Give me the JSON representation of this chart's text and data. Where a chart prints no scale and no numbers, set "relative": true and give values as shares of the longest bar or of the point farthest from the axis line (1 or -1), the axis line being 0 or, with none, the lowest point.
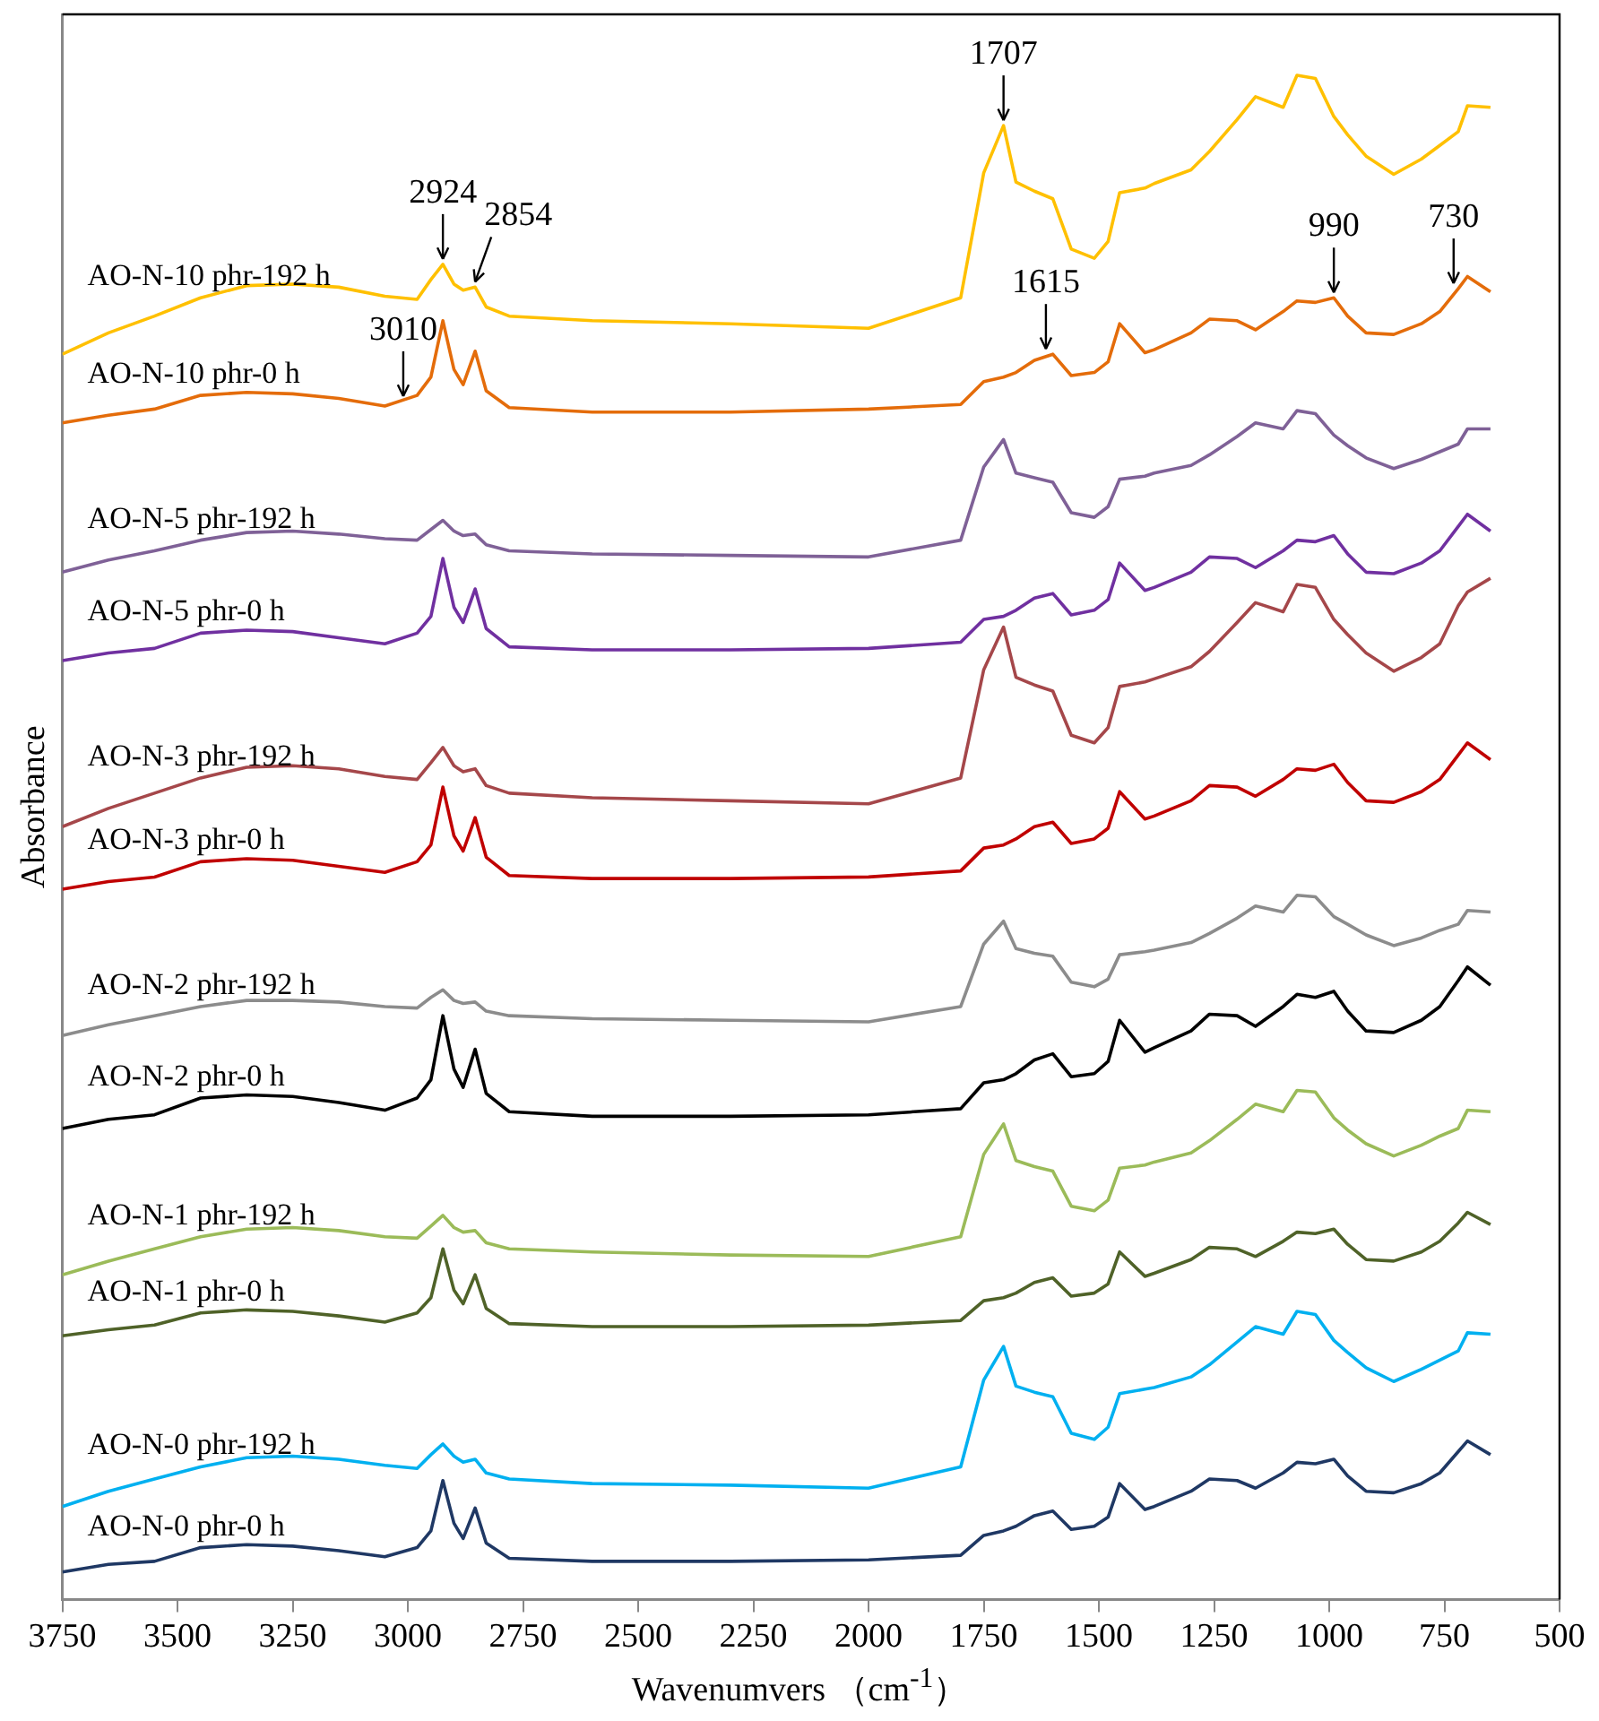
{
  "chart_data": {
    "type": "line",
    "relative": true,
    "xlabel": "Wavenumvers （cm$^{-1}$）",
    "ylabel": "Absorbance",
    "xlim": [
      3750,
      500
    ],
    "xticks": [
      3750,
      3500,
      3250,
      3000,
      2750,
      2500,
      2250,
      2000,
      1750,
      1500,
      1250,
      1000,
      750,
      500
    ],
    "grid": false,
    "legend": false,
    "x": [
      3750,
      3650,
      3550,
      3450,
      3350,
      3250,
      3150,
      3050,
      2980,
      2950,
      2924,
      2900,
      2880,
      2854,
      2830,
      2780,
      2600,
      2300,
      2000,
      1800,
      1750,
      1707,
      1680,
      1640,
      1600,
      1560,
      1510,
      1480,
      1455,
      1400,
      1380,
      1300,
      1260,
      1200,
      1160,
      1100,
      1070,
      1030,
      990,
      960,
      920,
      860,
      800,
      760,
      720,
      700,
      650
    ],
    "annotations": [
      {
        "text": "2924",
        "x": 2924,
        "y": 0.876
      },
      {
        "text": "2854",
        "x": 2854,
        "y": 0.861
      },
      {
        "text": "3010",
        "x": 3010,
        "y": 0.786
      },
      {
        "text": "1707",
        "x": 1707,
        "y": 0.967
      },
      {
        "text": "1615",
        "x": 1615,
        "y": 0.817
      },
      {
        "text": "990",
        "x": 990,
        "y": 0.854
      },
      {
        "text": "730",
        "x": 730,
        "y": 0.86
      }
    ],
    "series": [
      {
        "name": "AO-N-10 phr-192 h",
        "color": "#ffc000",
        "values": [
          0.817,
          0.831,
          0.842,
          0.854,
          0.862,
          0.863,
          0.861,
          0.855,
          0.853,
          0.866,
          0.876,
          0.863,
          0.859,
          0.861,
          0.848,
          0.842,
          0.839,
          0.837,
          0.834,
          0.854,
          0.936,
          0.967,
          0.93,
          0.924,
          0.919,
          0.886,
          0.88,
          0.891,
          0.923,
          0.926,
          0.929,
          0.938,
          0.95,
          0.971,
          0.986,
          0.979,
          1.0,
          0.998,
          0.973,
          0.961,
          0.947,
          0.935,
          0.945,
          0.954,
          0.963,
          0.98,
          0.979
        ]
      },
      {
        "name": "AO-N-10 phr-0 h",
        "color": "#e46c0a",
        "values": [
          0.772,
          0.777,
          0.781,
          0.79,
          0.792,
          0.791,
          0.788,
          0.783,
          0.79,
          0.802,
          0.839,
          0.807,
          0.797,
          0.819,
          0.793,
          0.782,
          0.779,
          0.779,
          0.781,
          0.784,
          0.799,
          0.802,
          0.805,
          0.813,
          0.817,
          0.803,
          0.805,
          0.812,
          0.837,
          0.818,
          0.82,
          0.831,
          0.84,
          0.839,
          0.833,
          0.845,
          0.852,
          0.851,
          0.854,
          0.842,
          0.831,
          0.83,
          0.837,
          0.845,
          0.86,
          0.868,
          0.858
        ]
      },
      {
        "name": "AO-N-5 phr-192 h",
        "color": "#7f6197",
        "values": [
          0.674,
          0.682,
          0.688,
          0.695,
          0.7,
          0.701,
          0.699,
          0.696,
          0.695,
          0.702,
          0.708,
          0.701,
          0.698,
          0.699,
          0.692,
          0.688,
          0.686,
          0.685,
          0.684,
          0.695,
          0.743,
          0.761,
          0.739,
          0.736,
          0.733,
          0.713,
          0.71,
          0.717,
          0.735,
          0.737,
          0.739,
          0.744,
          0.751,
          0.763,
          0.772,
          0.768,
          0.78,
          0.778,
          0.764,
          0.757,
          0.749,
          0.742,
          0.748,
          0.753,
          0.758,
          0.768,
          0.768
        ]
      },
      {
        "name": "AO-N-5 phr-0 h",
        "color": "#7030a0",
        "values": [
          0.616,
          0.621,
          0.624,
          0.634,
          0.636,
          0.635,
          0.631,
          0.627,
          0.634,
          0.645,
          0.683,
          0.651,
          0.641,
          0.663,
          0.637,
          0.625,
          0.623,
          0.623,
          0.624,
          0.628,
          0.643,
          0.645,
          0.649,
          0.657,
          0.66,
          0.646,
          0.649,
          0.656,
          0.68,
          0.662,
          0.664,
          0.674,
          0.684,
          0.683,
          0.677,
          0.688,
          0.695,
          0.694,
          0.698,
          0.686,
          0.674,
          0.673,
          0.68,
          0.688,
          0.704,
          0.712,
          0.701
        ]
      },
      {
        "name": "AO-N-3 phr-192 h",
        "color": "#a5474a",
        "values": [
          0.507,
          0.519,
          0.529,
          0.539,
          0.546,
          0.547,
          0.545,
          0.54,
          0.538,
          0.549,
          0.559,
          0.547,
          0.543,
          0.545,
          0.534,
          0.529,
          0.526,
          0.524,
          0.522,
          0.539,
          0.61,
          0.638,
          0.605,
          0.6,
          0.596,
          0.567,
          0.562,
          0.572,
          0.599,
          0.602,
          0.604,
          0.612,
          0.622,
          0.641,
          0.654,
          0.648,
          0.666,
          0.664,
          0.643,
          0.633,
          0.621,
          0.609,
          0.618,
          0.627,
          0.652,
          0.661,
          0.67
        ]
      },
      {
        "name": "AO-N-3 phr-0 h",
        "color": "#c00000",
        "values": [
          0.466,
          0.471,
          0.474,
          0.484,
          0.486,
          0.485,
          0.481,
          0.477,
          0.484,
          0.495,
          0.533,
          0.501,
          0.491,
          0.513,
          0.487,
          0.475,
          0.473,
          0.473,
          0.474,
          0.478,
          0.493,
          0.495,
          0.499,
          0.507,
          0.51,
          0.496,
          0.499,
          0.506,
          0.53,
          0.512,
          0.514,
          0.524,
          0.534,
          0.533,
          0.527,
          0.538,
          0.545,
          0.544,
          0.548,
          0.536,
          0.524,
          0.523,
          0.53,
          0.538,
          0.554,
          0.562,
          0.551
        ]
      },
      {
        "name": "AO-N-2 phr-192 h",
        "color": "#8c8c8c",
        "values": [
          0.37,
          0.377,
          0.383,
          0.389,
          0.393,
          0.393,
          0.392,
          0.389,
          0.388,
          0.395,
          0.4,
          0.393,
          0.391,
          0.392,
          0.386,
          0.383,
          0.381,
          0.38,
          0.379,
          0.389,
          0.43,
          0.445,
          0.427,
          0.424,
          0.422,
          0.405,
          0.402,
          0.407,
          0.423,
          0.425,
          0.426,
          0.431,
          0.437,
          0.447,
          0.455,
          0.451,
          0.462,
          0.461,
          0.448,
          0.443,
          0.436,
          0.429,
          0.434,
          0.439,
          0.443,
          0.452,
          0.451
        ]
      },
      {
        "name": "AO-N-2 phr-0 h",
        "color": "#000000",
        "values": [
          0.309,
          0.315,
          0.318,
          0.329,
          0.331,
          0.33,
          0.326,
          0.321,
          0.329,
          0.341,
          0.383,
          0.348,
          0.336,
          0.361,
          0.332,
          0.32,
          0.317,
          0.317,
          0.318,
          0.322,
          0.339,
          0.341,
          0.345,
          0.354,
          0.358,
          0.343,
          0.345,
          0.353,
          0.38,
          0.359,
          0.362,
          0.373,
          0.384,
          0.383,
          0.376,
          0.389,
          0.397,
          0.395,
          0.399,
          0.386,
          0.373,
          0.372,
          0.38,
          0.389,
          0.406,
          0.415,
          0.403
        ]
      },
      {
        "name": "AO-N-1 phr-192 h",
        "color": "#9bbb59",
        "values": [
          0.213,
          0.222,
          0.23,
          0.238,
          0.243,
          0.244,
          0.242,
          0.238,
          0.237,
          0.245,
          0.252,
          0.244,
          0.241,
          0.242,
          0.234,
          0.23,
          0.228,
          0.226,
          0.225,
          0.238,
          0.292,
          0.312,
          0.288,
          0.284,
          0.281,
          0.258,
          0.255,
          0.262,
          0.283,
          0.285,
          0.287,
          0.293,
          0.301,
          0.315,
          0.325,
          0.32,
          0.334,
          0.333,
          0.316,
          0.308,
          0.299,
          0.291,
          0.298,
          0.304,
          0.309,
          0.321,
          0.32
        ]
      },
      {
        "name": "AO-N-1 phr-0 h",
        "color": "#4f6228",
        "values": [
          0.173,
          0.177,
          0.18,
          0.188,
          0.19,
          0.189,
          0.186,
          0.182,
          0.188,
          0.198,
          0.23,
          0.203,
          0.194,
          0.213,
          0.191,
          0.181,
          0.179,
          0.179,
          0.18,
          0.183,
          0.196,
          0.198,
          0.201,
          0.208,
          0.211,
          0.199,
          0.201,
          0.207,
          0.228,
          0.212,
          0.214,
          0.223,
          0.231,
          0.23,
          0.225,
          0.235,
          0.241,
          0.24,
          0.243,
          0.233,
          0.223,
          0.222,
          0.228,
          0.235,
          0.247,
          0.254,
          0.246
        ]
      },
      {
        "name": "AO-N-0 phr-192 h",
        "color": "#00b0f0",
        "values": [
          0.061,
          0.071,
          0.079,
          0.087,
          0.093,
          0.094,
          0.092,
          0.088,
          0.086,
          0.095,
          0.102,
          0.094,
          0.09,
          0.092,
          0.083,
          0.079,
          0.076,
          0.075,
          0.073,
          0.087,
          0.144,
          0.166,
          0.14,
          0.136,
          0.133,
          0.109,
          0.105,
          0.113,
          0.135,
          0.138,
          0.139,
          0.146,
          0.154,
          0.169,
          0.179,
          0.174,
          0.189,
          0.187,
          0.17,
          0.162,
          0.152,
          0.143,
          0.151,
          0.157,
          0.163,
          0.175,
          0.174
        ]
      },
      {
        "name": "AO-N-0 phr-0 h",
        "color": "#1f3864",
        "values": [
          0.018,
          0.023,
          0.025,
          0.034,
          0.036,
          0.035,
          0.032,
          0.028,
          0.034,
          0.045,
          0.078,
          0.05,
          0.04,
          0.06,
          0.037,
          0.027,
          0.025,
          0.025,
          0.026,
          0.029,
          0.042,
          0.045,
          0.048,
          0.055,
          0.058,
          0.046,
          0.048,
          0.054,
          0.076,
          0.059,
          0.061,
          0.071,
          0.079,
          0.078,
          0.073,
          0.083,
          0.09,
          0.089,
          0.092,
          0.081,
          0.071,
          0.07,
          0.076,
          0.083,
          0.097,
          0.104,
          0.095
        ]
      }
    ]
  }
}
